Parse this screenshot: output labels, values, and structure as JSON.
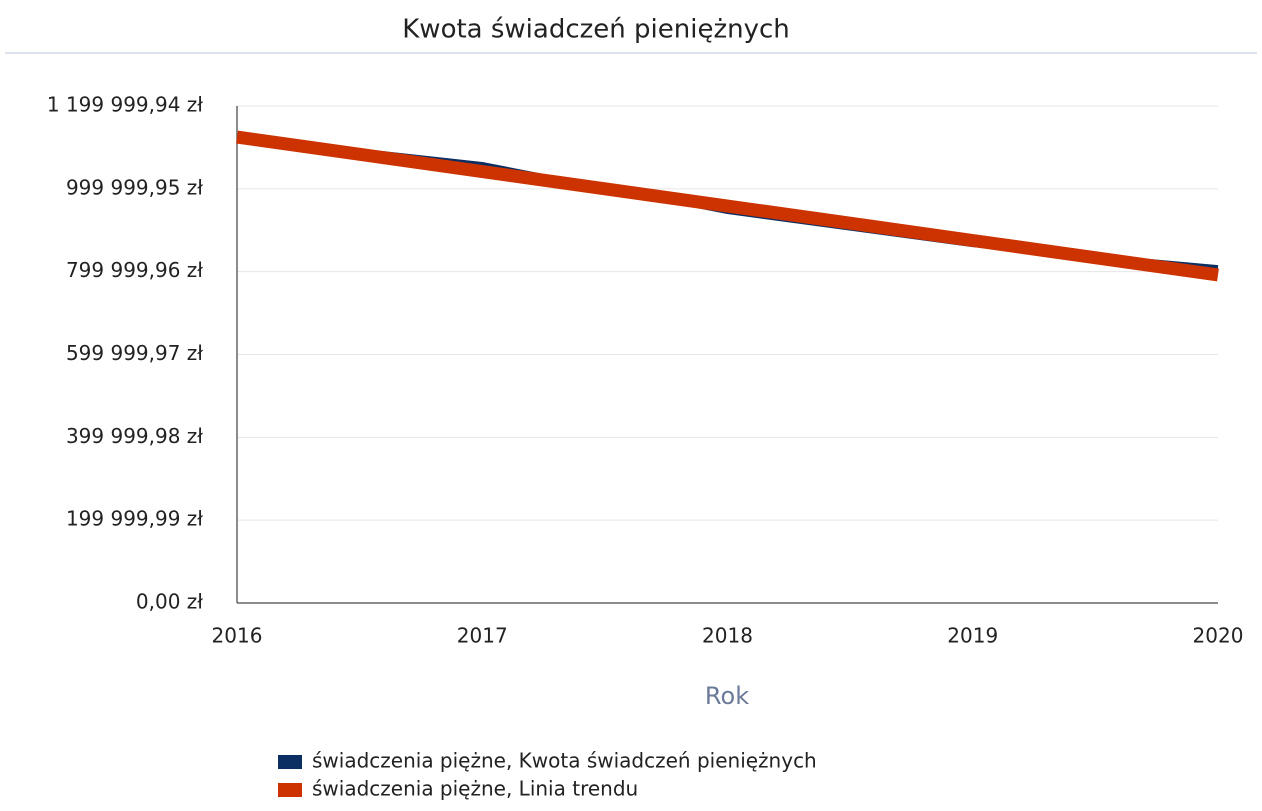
{
  "chart_data": {
    "type": "line",
    "title": "Kwota świadczeń pieniężnych",
    "x_label": "Rok",
    "categories": [
      "2016",
      "2017",
      "2018",
      "2019",
      "2020"
    ],
    "series": [
      {
        "name": "świadczenia piężne, Kwota świadczeń pieniężnych",
        "color": "#0b2f63",
        "values": [
          1125000,
          1060000,
          944000,
          864000,
          811000
        ]
      },
      {
        "name": "świadczenia piężne, Linia trendu",
        "color": "#cc3300",
        "values": [
          1125000,
          1041750,
          958500,
          875250,
          792000
        ]
      }
    ],
    "ylim": [
      0,
      1199999.94
    ],
    "yticks": [
      {
        "value": 0,
        "label": "0,00 zł"
      },
      {
        "value": 199999.99,
        "label": "199 999,99 zł"
      },
      {
        "value": 399999.98,
        "label": "399 999,98 zł"
      },
      {
        "value": 599999.97,
        "label": "599 999,97 zł"
      },
      {
        "value": 799999.96,
        "label": "799 999,96 zł"
      },
      {
        "value": 999999.95,
        "label": "999 999,95 zł"
      },
      {
        "value": 1199999.94,
        "label": "1 199 999,94 zł"
      }
    ],
    "grid": true,
    "legend": "bottom"
  }
}
